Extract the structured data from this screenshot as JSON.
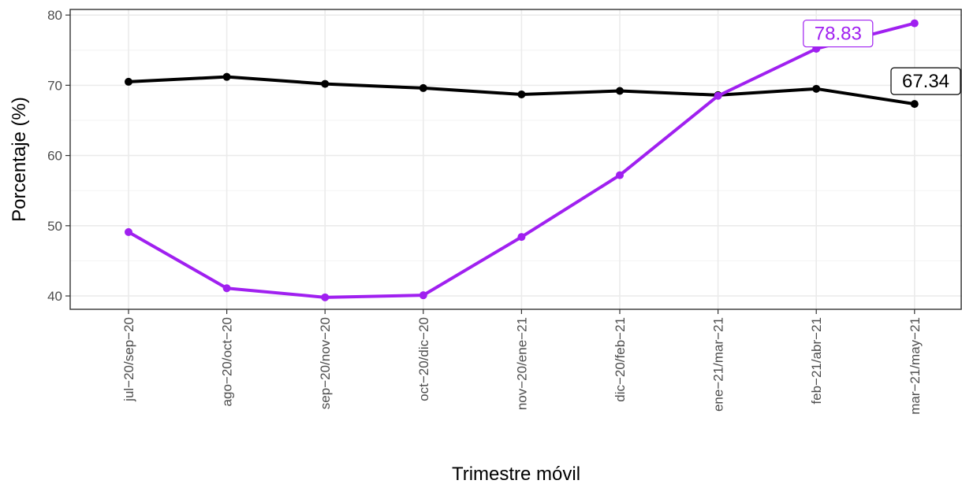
{
  "chart_data": {
    "type": "line",
    "xlabel": "Trimestre móvil",
    "ylabel": "Porcentaje (%)",
    "categories": [
      "jul−20/sep−20",
      "ago−20/oct−20",
      "sep−20/nov−20",
      "oct−20/dic−20",
      "nov−20/ene−21",
      "dic−20/feb−21",
      "ene−21/mar−21",
      "feb−21/abr−21",
      "mar−21/may−21"
    ],
    "y_ticks": [
      40,
      50,
      60,
      70,
      80
    ],
    "ylim": [
      38.1,
      80.8
    ],
    "grid": true,
    "series": [
      {
        "color": "#000000",
        "values": [
          70.5,
          71.2,
          70.2,
          69.6,
          68.7,
          69.2,
          68.6,
          69.5,
          67.34
        ],
        "end_label": "67.34"
      },
      {
        "color": "#a020f0",
        "values": [
          49.1,
          41.1,
          39.8,
          40.1,
          48.4,
          57.2,
          68.5,
          75.2,
          78.83
        ],
        "end_label": "78.83"
      }
    ]
  }
}
